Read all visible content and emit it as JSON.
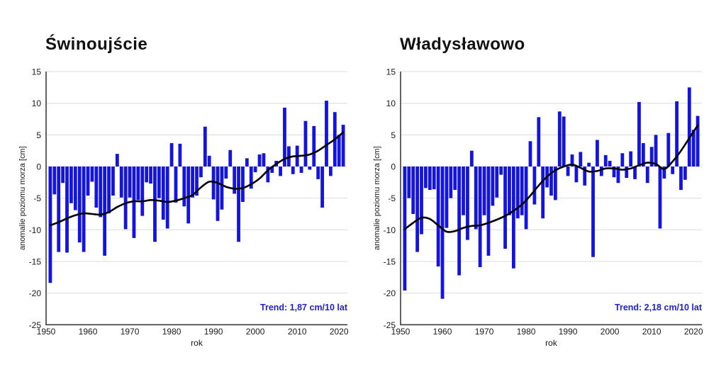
{
  "colors": {
    "bar": "#1414DC",
    "trend_line": "#000000",
    "trend_text": "#2222CC",
    "grid": "#DCDCDC",
    "axis": "#3C3C3C",
    "background": "#FFFFFF"
  },
  "chart_data": [
    {
      "type": "bar",
      "title": "Świnoujście",
      "xlabel": "rok",
      "ylabel": "anomalie poziomu morza [cm]",
      "trend_label": "Trend: 1,87 cm/10 lat",
      "ylim": [
        -25,
        15
      ],
      "xlim": [
        1950,
        2022
      ],
      "yticks": [
        15,
        10,
        5,
        0,
        -5,
        -10,
        -15,
        -20,
        -25
      ],
      "xticks": [
        1950,
        1960,
        1970,
        1980,
        1990,
        2000,
        2010,
        2020
      ],
      "years": [
        1951,
        1952,
        1953,
        1954,
        1955,
        1956,
        1957,
        1958,
        1959,
        1960,
        1961,
        1962,
        1963,
        1964,
        1965,
        1966,
        1967,
        1968,
        1969,
        1970,
        1971,
        1972,
        1973,
        1974,
        1975,
        1976,
        1977,
        1978,
        1979,
        1980,
        1981,
        1982,
        1983,
        1984,
        1985,
        1986,
        1987,
        1988,
        1989,
        1990,
        1991,
        1992,
        1993,
        1994,
        1995,
        1996,
        1997,
        1998,
        1999,
        2000,
        2001,
        2002,
        2003,
        2004,
        2005,
        2006,
        2007,
        2008,
        2009,
        2010,
        2011,
        2012,
        2013,
        2014,
        2015,
        2016,
        2017,
        2018,
        2019,
        2020,
        2021
      ],
      "values": [
        -18.4,
        -4.4,
        -13.5,
        -2.6,
        -13.6,
        -5.8,
        -6.9,
        -12.0,
        -13.5,
        -4.6,
        -2.4,
        -6.5,
        -8.0,
        -14.1,
        -7.4,
        -4.6,
        2.0,
        -4.9,
        -9.9,
        -4.9,
        -11.3,
        -5.3,
        -7.8,
        -2.5,
        -2.7,
        -11.9,
        -5.0,
        -8.4,
        -9.8,
        3.7,
        -5.7,
        3.6,
        -6.3,
        -9.0,
        -4.9,
        -4.6,
        -1.7,
        6.3,
        1.7,
        -5.2,
        -8.6,
        -6.8,
        -1.9,
        2.6,
        -4.3,
        -11.9,
        -5.6,
        1.3,
        -3.5,
        -0.9,
        1.9,
        2.1,
        -2.5,
        -1.0,
        0.9,
        -1.5,
        9.3,
        3.2,
        -1.2,
        3.3,
        -1.0,
        7.2,
        -0.5,
        6.4,
        -2.0,
        -6.5,
        10.4,
        -1.5,
        8.6,
        5.0,
        6.6
      ],
      "trend_line": {
        "years": [
          1951,
          1953,
          1955,
          1957,
          1959,
          1961,
          1963,
          1965,
          1967,
          1969,
          1971,
          1973,
          1975,
          1977,
          1979,
          1981,
          1983,
          1985,
          1987,
          1989,
          1991,
          1993,
          1995,
          1997,
          1999,
          2001,
          2003,
          2005,
          2007,
          2009,
          2011,
          2013,
          2015,
          2017,
          2019,
          2021
        ],
        "values": [
          -9.3,
          -8.8,
          -8.2,
          -7.7,
          -7.4,
          -7.5,
          -7.6,
          -7.2,
          -6.4,
          -5.8,
          -5.5,
          -5.5,
          -5.3,
          -5.4,
          -5.6,
          -5.4,
          -5.0,
          -4.5,
          -3.3,
          -2.4,
          -2.6,
          -3.2,
          -3.5,
          -3.4,
          -2.8,
          -1.9,
          -0.6,
          0.4,
          1.2,
          1.6,
          1.7,
          1.9,
          2.5,
          3.4,
          4.3,
          5.4
        ]
      }
    },
    {
      "type": "bar",
      "title": "Władysławowo",
      "xlabel": "rok",
      "ylabel": "anomalie poziomu morza [cm]",
      "trend_label": "Trend: 2,18 cm/10 lat",
      "ylim": [
        -25,
        15
      ],
      "xlim": [
        1950,
        2022
      ],
      "yticks": [
        15,
        10,
        5,
        0,
        -5,
        -10,
        -15,
        -20,
        -25
      ],
      "xticks": [
        1950,
        1960,
        1970,
        1980,
        1990,
        2000,
        2010,
        2020
      ],
      "years": [
        1951,
        1952,
        1953,
        1954,
        1955,
        1956,
        1957,
        1958,
        1959,
        1960,
        1961,
        1962,
        1963,
        1964,
        1965,
        1966,
        1967,
        1968,
        1969,
        1970,
        1971,
        1972,
        1973,
        1974,
        1975,
        1976,
        1977,
        1978,
        1979,
        1980,
        1981,
        1982,
        1983,
        1984,
        1985,
        1986,
        1987,
        1988,
        1989,
        1990,
        1991,
        1992,
        1993,
        1994,
        1995,
        1996,
        1997,
        1998,
        1999,
        2000,
        2001,
        2002,
        2003,
        2004,
        2005,
        2006,
        2007,
        2008,
        2009,
        2010,
        2011,
        2012,
        2013,
        2014,
        2015,
        2016,
        2017,
        2018,
        2019,
        2020,
        2021
      ],
      "values": [
        -19.6,
        -5.0,
        -7.5,
        -13.5,
        -10.7,
        -3.4,
        -3.7,
        -3.6,
        -15.8,
        -20.9,
        -9.7,
        -5.0,
        -3.7,
        -17.2,
        -7.7,
        -11.6,
        2.5,
        -9.9,
        -15.9,
        -7.7,
        -14.1,
        -6.2,
        -4.9,
        -1.3,
        -13.0,
        -7.7,
        -16.1,
        -8.2,
        -7.7,
        -9.9,
        4.0,
        -6.0,
        7.8,
        -8.2,
        -3.3,
        -4.6,
        -5.3,
        8.7,
        7.9,
        -1.5,
        1.9,
        -2.5,
        2.3,
        -3.0,
        0.6,
        -14.3,
        4.2,
        -1.5,
        1.8,
        0.9,
        -1.7,
        -2.6,
        2.1,
        -1.8,
        2.4,
        -2.0,
        10.2,
        3.7,
        -2.6,
        3.1,
        5.0,
        -9.8,
        -1.9,
        5.3,
        -1.2,
        10.3,
        -3.7,
        -2.1,
        12.5,
        5.8,
        8.0
      ],
      "trend_line": {
        "years": [
          1951,
          1953,
          1955,
          1957,
          1959,
          1961,
          1963,
          1965,
          1967,
          1969,
          1971,
          1973,
          1975,
          1977,
          1979,
          1981,
          1983,
          1985,
          1987,
          1989,
          1991,
          1993,
          1995,
          1997,
          1999,
          2001,
          2003,
          2005,
          2007,
          2009,
          2011,
          2013,
          2015,
          2017,
          2019,
          2021
        ],
        "values": [
          -9.9,
          -8.9,
          -8.1,
          -8.3,
          -9.3,
          -10.3,
          -10.2,
          -9.7,
          -9.4,
          -9.3,
          -8.9,
          -8.4,
          -7.8,
          -7.0,
          -6.0,
          -4.6,
          -3.0,
          -1.6,
          -0.6,
          0.0,
          0.3,
          -0.2,
          -0.8,
          -0.7,
          -0.3,
          -0.3,
          -0.5,
          -0.3,
          0.2,
          0.6,
          0.4,
          -0.4,
          0.8,
          2.5,
          4.5,
          6.5
        ]
      }
    }
  ]
}
